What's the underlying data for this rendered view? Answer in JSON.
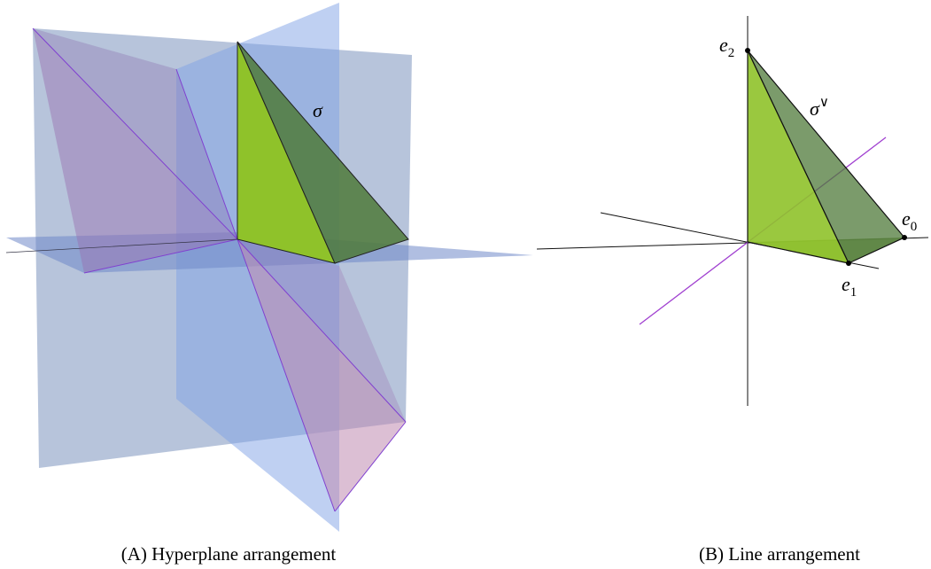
{
  "panels": [
    {
      "caption": "(A) Hyperplane arrangement",
      "label": "σ"
    },
    {
      "caption": "(B) Line arrangement",
      "label": {
        "base": "σ",
        "sup": "∨"
      },
      "points": [
        {
          "base": "e",
          "sub": "2"
        },
        {
          "base": "e",
          "sub": "0"
        },
        {
          "base": "e",
          "sub": "1"
        }
      ]
    }
  ]
}
